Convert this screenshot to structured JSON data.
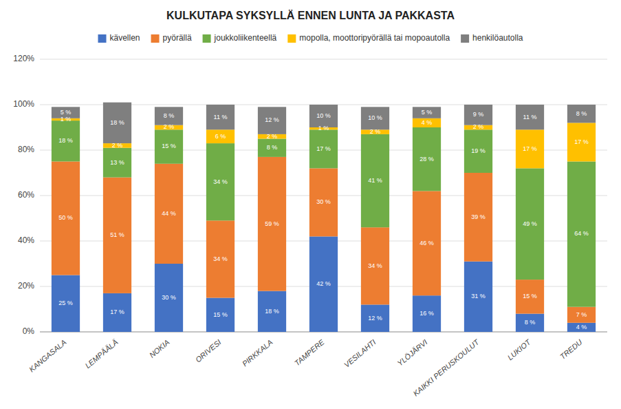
{
  "chart_data": {
    "type": "bar",
    "stacked": true,
    "title": "KULKUTAPA SYKSYLLÄ ENNEN LUNTA JA PAKKASTA",
    "categories": [
      "KANGASALA",
      "LEMPÄÄLÄ",
      "NOKIA",
      "ORIVESI",
      "PIRKKALA",
      "TAMPERE",
      "VESILAHTI",
      "YLÖJÄRVI",
      "KAIKKI PERUSKOULUT",
      "LUKIOT",
      "TREDU"
    ],
    "series": [
      {
        "name": "kävellen",
        "color": "#4472c4",
        "values": [
          25,
          17,
          30,
          15,
          18,
          42,
          12,
          16,
          31,
          8,
          4
        ],
        "value_labels": [
          "25 %",
          "17 %",
          "30 %",
          "15 %",
          "18 %",
          "42 %",
          "12 %",
          "16 %",
          "31 %",
          "8 %",
          "4 %"
        ]
      },
      {
        "name": "pyörällä",
        "color": "#ed7d31",
        "values": [
          50,
          51,
          44,
          34,
          59,
          30,
          34,
          46,
          39,
          15,
          7
        ],
        "value_labels": [
          "50 %",
          "51 %",
          "44 %",
          "34 %",
          "59 %",
          "30 %",
          "34 %",
          "46 %",
          "39 %",
          "15 %",
          "7 %"
        ]
      },
      {
        "name": "joukkoliikenteellä",
        "color": "#70ad47",
        "values": [
          18,
          13,
          15,
          34,
          8,
          17,
          41,
          28,
          19,
          49,
          64
        ],
        "value_labels": [
          "18 %",
          "13 %",
          "15 %",
          "34 %",
          "8 %",
          "17 %",
          "41 %",
          "28 %",
          "19 %",
          "49 %",
          "64 %"
        ]
      },
      {
        "name": "mopolla, moottoripyörällä tai mopoautolla",
        "color": "#ffc000",
        "values": [
          1,
          2,
          2,
          6,
          2,
          1,
          2,
          4,
          2,
          17,
          17
        ],
        "value_labels": [
          "1 %",
          "2 %",
          "2 %",
          "6 %",
          "2 %",
          "1 %",
          "2 %",
          "4 %",
          "2 %",
          "17 %",
          "17 %"
        ]
      },
      {
        "name": "henkilöautolla",
        "color": "#7f7f7f",
        "values": [
          5,
          18,
          8,
          11,
          12,
          10,
          10,
          5,
          9,
          11,
          8
        ],
        "value_labels": [
          "5 %",
          "18 %",
          "8 %",
          "11 %",
          "12 %",
          "10 %",
          "10 %",
          "5 %",
          "9 %",
          "11 %",
          "8 %"
        ]
      }
    ],
    "ylim": [
      0,
      120
    ],
    "yticks": [
      {
        "value": 0,
        "label": "0%"
      },
      {
        "value": 20,
        "label": "20%"
      },
      {
        "value": 40,
        "label": "40%"
      },
      {
        "value": 60,
        "label": "60%"
      },
      {
        "value": 80,
        "label": "80%"
      },
      {
        "value": 100,
        "label": "100%"
      },
      {
        "value": 120,
        "label": "120%"
      }
    ],
    "grid": true,
    "legend": "top",
    "data_labels": true
  }
}
